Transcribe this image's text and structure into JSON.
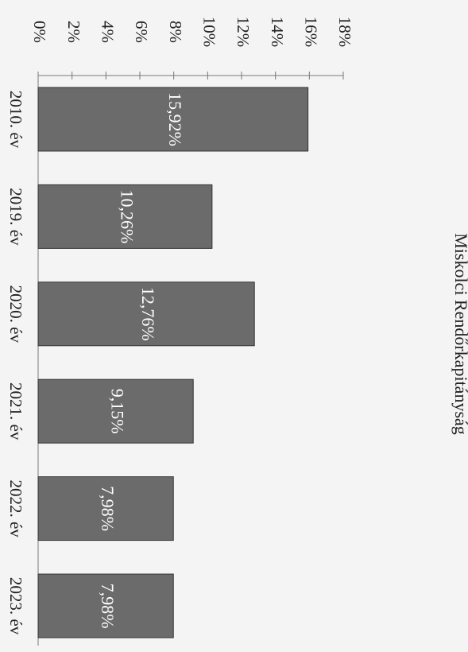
{
  "chart_data": {
    "type": "bar",
    "title": "Miskolci Rendőrkapitányság",
    "categories": [
      "2010. év",
      "2019. év",
      "2020. év",
      "2021. év",
      "2022. év",
      "2023. év"
    ],
    "values": [
      15.92,
      10.26,
      12.76,
      9.15,
      7.98,
      7.98
    ],
    "value_labels": [
      "15,92%",
      "10,26%",
      "12,76%",
      "9,15%",
      "7,98%",
      "7,98%"
    ],
    "color": "#6b6b6b",
    "ylim": [
      0,
      18
    ],
    "yticks": [
      {
        "value": 0,
        "label": "0%"
      },
      {
        "value": 2,
        "label": "2%"
      },
      {
        "value": 4,
        "label": "4%"
      },
      {
        "value": 6,
        "label": "6%"
      },
      {
        "value": 8,
        "label": "8%"
      },
      {
        "value": 10,
        "label": "10%"
      },
      {
        "value": 12,
        "label": "12%"
      },
      {
        "value": 14,
        "label": "14%"
      },
      {
        "value": 16,
        "label": "16%"
      },
      {
        "value": 18,
        "label": "18%"
      }
    ],
    "grid": false
  }
}
